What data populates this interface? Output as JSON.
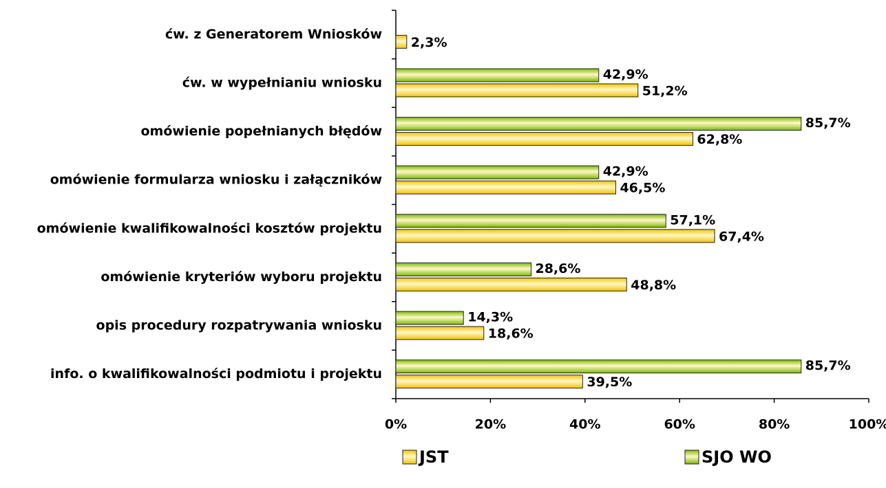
{
  "chart_data": {
    "type": "hbar",
    "categories": [
      "ćw. z Generatorem Wniosków",
      "ćw. w wypełnianiu wniosku",
      "omówienie popełnianych błędów",
      "omówienie formularza wniosku i załączników",
      "omówienie kwalifikowalności kosztów projektu",
      "omówienie kryteriów wyboru projektu",
      "opis procedury rozpatrywania wniosku",
      "info. o kwalifikowalności podmiotu i projektu"
    ],
    "series": [
      {
        "name": "JST",
        "color": "#f2c200",
        "values": [
          2.3,
          51.2,
          62.8,
          46.5,
          67.4,
          48.8,
          18.6,
          39.5
        ],
        "value_labels": [
          "2,3%",
          "51,2%",
          "62,8%",
          "46,5%",
          "67,4%",
          "48,8%",
          "18,6%",
          "39,5%"
        ]
      },
      {
        "name": "SJO WO",
        "color": "#7ab800",
        "values": [
          null,
          42.9,
          85.7,
          42.9,
          57.1,
          28.6,
          14.3,
          85.7
        ],
        "value_labels": [
          null,
          "42,9%",
          "85,7%",
          "42,9%",
          "57,1%",
          "28,6%",
          "14,3%",
          "85,7%"
        ]
      }
    ],
    "xlim": [
      0,
      100
    ],
    "xticks": [
      {
        "value": 0,
        "label": "0%"
      },
      {
        "value": 20,
        "label": "20%"
      },
      {
        "value": 40,
        "label": "40%"
      },
      {
        "value": 60,
        "label": "60%"
      },
      {
        "value": 80,
        "label": "80%"
      },
      {
        "value": 100,
        "label": "100%"
      }
    ]
  }
}
